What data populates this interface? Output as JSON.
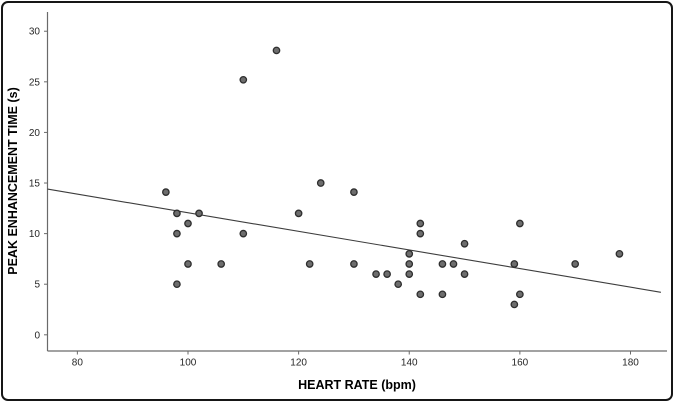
{
  "chart_data": {
    "type": "scatter",
    "title": "",
    "xlabel": "HEART RATE (bpm)",
    "ylabel": "PEAK ENHANCEMENT TIME (s)",
    "xlim": [
      74.6,
      186.6
    ],
    "ylim": [
      -1.6,
      31.9
    ],
    "x_ticks": [
      80,
      100,
      120,
      140,
      160,
      180
    ],
    "y_ticks": [
      0,
      5,
      10,
      15,
      20,
      25,
      30
    ],
    "grid": false,
    "legend": null,
    "points": [
      [
        96,
        14.1
      ],
      [
        98,
        12
      ],
      [
        98,
        10
      ],
      [
        98,
        5
      ],
      [
        100,
        11
      ],
      [
        100,
        7
      ],
      [
        102,
        12
      ],
      [
        106,
        7
      ],
      [
        110,
        25.2
      ],
      [
        110,
        10
      ],
      [
        116,
        28.1
      ],
      [
        120,
        12
      ],
      [
        122,
        7
      ],
      [
        124,
        15
      ],
      [
        130,
        14.1
      ],
      [
        130,
        7
      ],
      [
        134,
        6
      ],
      [
        136,
        6
      ],
      [
        138,
        5
      ],
      [
        140,
        8
      ],
      [
        140,
        7
      ],
      [
        140,
        6
      ],
      [
        142,
        11
      ],
      [
        142,
        10
      ],
      [
        142,
        4
      ],
      [
        146,
        7
      ],
      [
        146,
        4
      ],
      [
        148,
        7
      ],
      [
        150,
        9
      ],
      [
        150,
        6
      ],
      [
        159,
        7
      ],
      [
        159,
        3
      ],
      [
        160,
        11
      ],
      [
        160,
        4
      ],
      [
        170,
        7
      ],
      [
        178,
        8
      ]
    ],
    "trendline": {
      "x1": 74.6,
      "y1": 14.4,
      "x2": 185.5,
      "y2": 4.2
    },
    "colors": {
      "point_fill": "#6d6d6d",
      "point_stroke": "#2e2e2e",
      "trend": "#3d3d3d",
      "axis": "#6a6a6a",
      "tick_label": "#262626",
      "axis_title": "#000000",
      "frame": "#161616",
      "background": "#ffffff"
    }
  }
}
